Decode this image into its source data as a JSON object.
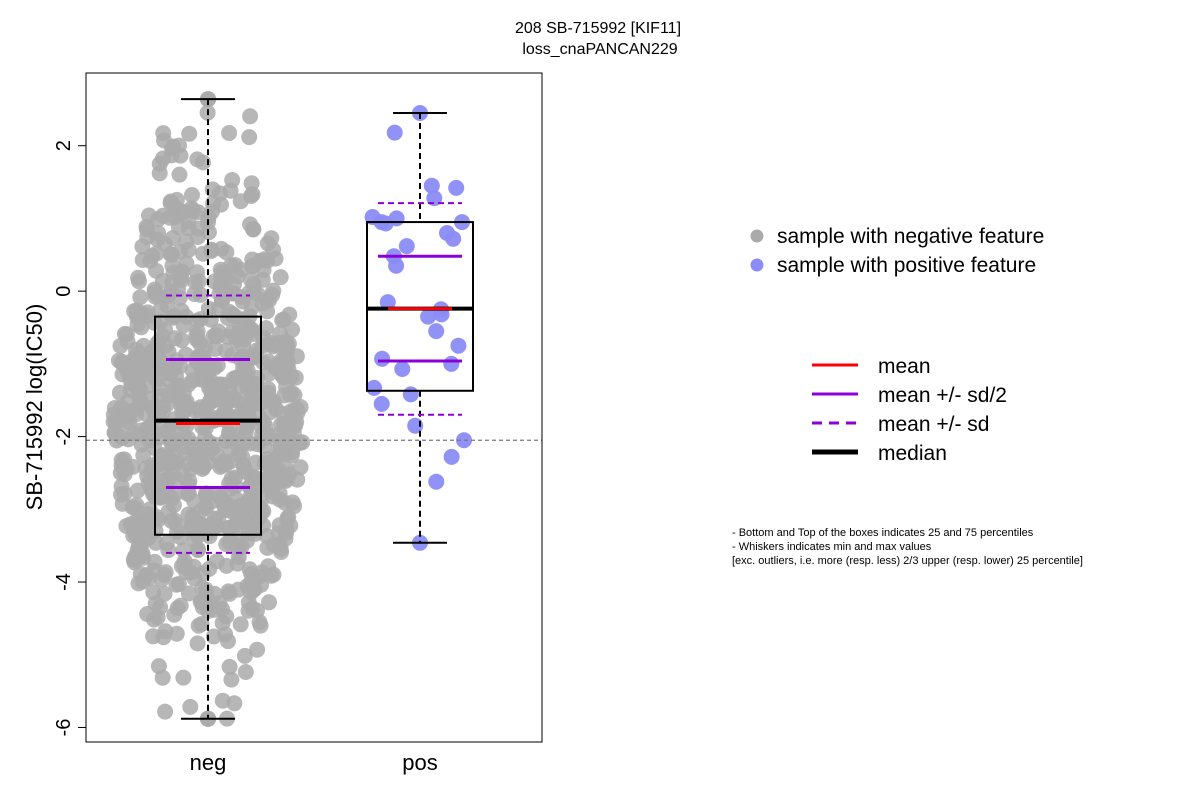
{
  "chart_data": {
    "type": "box",
    "title": [
      "208 SB-715992 [KIF11]",
      "loss_cnaPANCAN229"
    ],
    "ylabel": "SB-715992 log(IC50)",
    "xlabel": "",
    "categories": [
      "neg",
      "pos"
    ],
    "ylim": [
      -6.2,
      3.0
    ],
    "yticks": [
      -6,
      -4,
      -2,
      0,
      2
    ],
    "reference_line": -2.05,
    "groups": [
      {
        "name": "neg",
        "min": -5.88,
        "q1": -3.35,
        "median": -1.78,
        "q3": -0.35,
        "max": 2.64,
        "mean": -1.82,
        "mean_minus_half_sd": -2.7,
        "mean_plus_half_sd": -0.94,
        "mean_minus_sd": -3.6,
        "mean_plus_sd": -0.06,
        "color": "#aaaaaa",
        "n_points": 900
      },
      {
        "name": "pos",
        "min": -3.46,
        "q1": -1.37,
        "median": -0.24,
        "q3": 0.95,
        "max": 2.45,
        "mean": -0.24,
        "mean_minus_half_sd": -0.96,
        "mean_plus_half_sd": 0.48,
        "mean_minus_sd": -1.7,
        "mean_plus_sd": 1.21,
        "color": "#8b8cf5",
        "points": [
          2.45,
          2.18,
          1.45,
          1.42,
          1.28,
          1.02,
          1.0,
          0.95,
          0.95,
          0.93,
          0.8,
          0.72,
          0.62,
          0.48,
          0.35,
          -0.15,
          -0.25,
          -0.32,
          -0.35,
          -0.55,
          -0.75,
          -0.93,
          -1.0,
          -1.07,
          -1.33,
          -1.42,
          -1.55,
          -1.85,
          -2.05,
          -2.28,
          -2.62,
          -3.46
        ]
      }
    ],
    "legend_points": [
      {
        "label": "sample with negative feature",
        "color": "#aaaaaa"
      },
      {
        "label": "sample with positive feature",
        "color": "#8b8cf5"
      }
    ],
    "legend_lines": [
      {
        "label": "mean",
        "color": "#ff0000",
        "style": "solid"
      },
      {
        "label": "mean +/- sd/2",
        "color": "#8b00d8",
        "style": "solid"
      },
      {
        "label": "mean +/- sd",
        "color": "#8b00d8",
        "style": "dashed"
      },
      {
        "label": "median",
        "color": "#000000",
        "style": "solid-thick"
      }
    ],
    "notes": [
      "- Bottom and Top of the boxes indicates 25 and 75 percentiles",
      "- Whiskers indicates min and max values",
      "[exc. outliers, i.e. more (resp. less) 2/3 upper (resp. lower) 25 percentile]"
    ]
  }
}
